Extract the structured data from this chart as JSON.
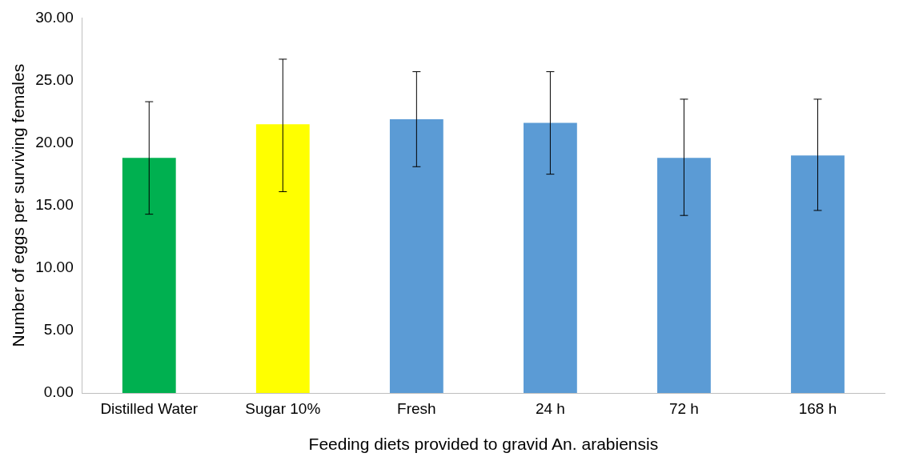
{
  "chart_data": {
    "type": "bar",
    "xlabel": "Feeding diets provided to gravid An. arabiensis",
    "ylabel": "Number of eggs per surviving females",
    "categories": [
      "Distilled Water",
      "Sugar 10%",
      "Fresh",
      "24 h",
      "72 h",
      "168 h"
    ],
    "values": [
      18.8,
      21.5,
      21.9,
      21.6,
      18.8,
      19.0
    ],
    "colors": [
      "#00b050",
      "#ffff00",
      "#5b9bd5",
      "#5b9bd5",
      "#5b9bd5",
      "#5b9bd5"
    ],
    "errors": [
      [
        14.3,
        23.3
      ],
      [
        16.1,
        26.7
      ],
      [
        18.1,
        25.7
      ],
      [
        17.5,
        25.7
      ],
      [
        14.2,
        23.5
      ],
      [
        14.6,
        23.5
      ]
    ],
    "ylim": [
      0,
      30
    ],
    "yticks": [
      {
        "value": 0,
        "label": "0.00"
      },
      {
        "value": 5,
        "label": "5.00"
      },
      {
        "value": 10,
        "label": "10.00"
      },
      {
        "value": 15,
        "label": "15.00"
      },
      {
        "value": 20,
        "label": "20.00"
      },
      {
        "value": 25,
        "label": "25.00"
      },
      {
        "value": 30,
        "label": "30.00"
      }
    ],
    "grid": false,
    "legend": false
  }
}
